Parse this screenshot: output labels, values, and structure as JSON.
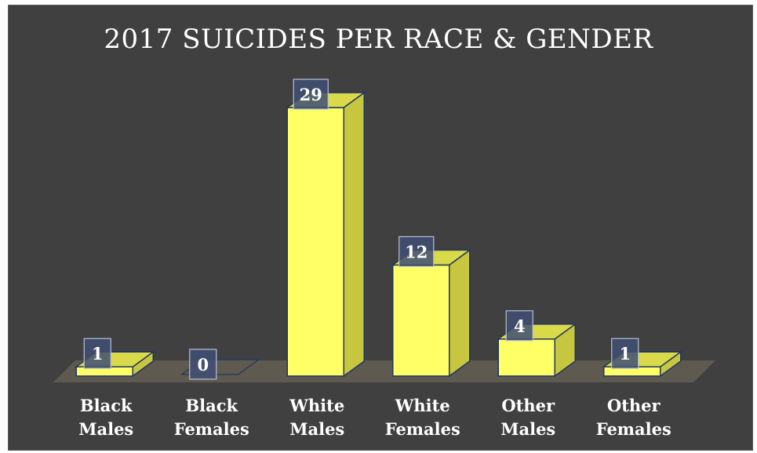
{
  "chart_data": {
    "type": "bar",
    "title": "2017 SUICIDES PER RACE & GENDER",
    "categories": [
      [
        "Black",
        "Males"
      ],
      [
        "Black",
        "Females"
      ],
      [
        "White",
        "Males"
      ],
      [
        "White",
        "Females"
      ],
      [
        "Other",
        "Males"
      ],
      [
        "Other",
        "Females"
      ]
    ],
    "values": [
      1,
      0,
      29,
      12,
      4,
      1
    ],
    "data_labels": [
      "1",
      "0",
      "29",
      "12",
      "4",
      "1"
    ],
    "xlabel": "",
    "ylabel": "",
    "ylim": [
      0,
      29
    ],
    "grid": false,
    "legend": "none"
  },
  "colors": {
    "background": "#404040",
    "bar_front": "#ffff66",
    "bar_side": "#c6c63f",
    "bar_top": "#d9d94a",
    "bar_stroke": "#1f3763",
    "floor": "#5e5a4f",
    "label_box": "#3f4f73",
    "label_box_border": "#b8c0d4",
    "text": "#ffffff"
  }
}
